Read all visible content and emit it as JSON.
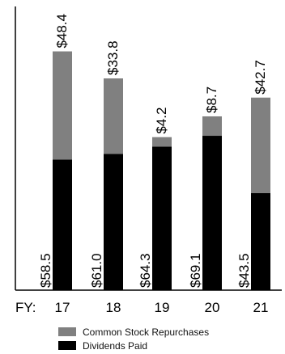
{
  "chart_data": {
    "type": "bar",
    "stacked": true,
    "axis_prefix": "FY:",
    "categories": [
      "17",
      "18",
      "19",
      "20",
      "21"
    ],
    "series": [
      {
        "name": "Dividends Paid",
        "color": "#000000",
        "values": [
          58.5,
          61.0,
          64.3,
          69.1,
          43.5
        ],
        "labels": [
          "$58.5",
          "$61.0",
          "$64.3",
          "$69.1",
          "$43.5"
        ]
      },
      {
        "name": "Common Stock Repurchases",
        "color": "#808080",
        "values": [
          48.4,
          33.8,
          4.2,
          8.7,
          42.7
        ],
        "labels": [
          "$48.4",
          "$33.8",
          "$4.2",
          "$8.7",
          "$42.7"
        ]
      }
    ],
    "ylim": [
      0,
      127
    ],
    "grid": false,
    "legend_position": "bottom"
  }
}
